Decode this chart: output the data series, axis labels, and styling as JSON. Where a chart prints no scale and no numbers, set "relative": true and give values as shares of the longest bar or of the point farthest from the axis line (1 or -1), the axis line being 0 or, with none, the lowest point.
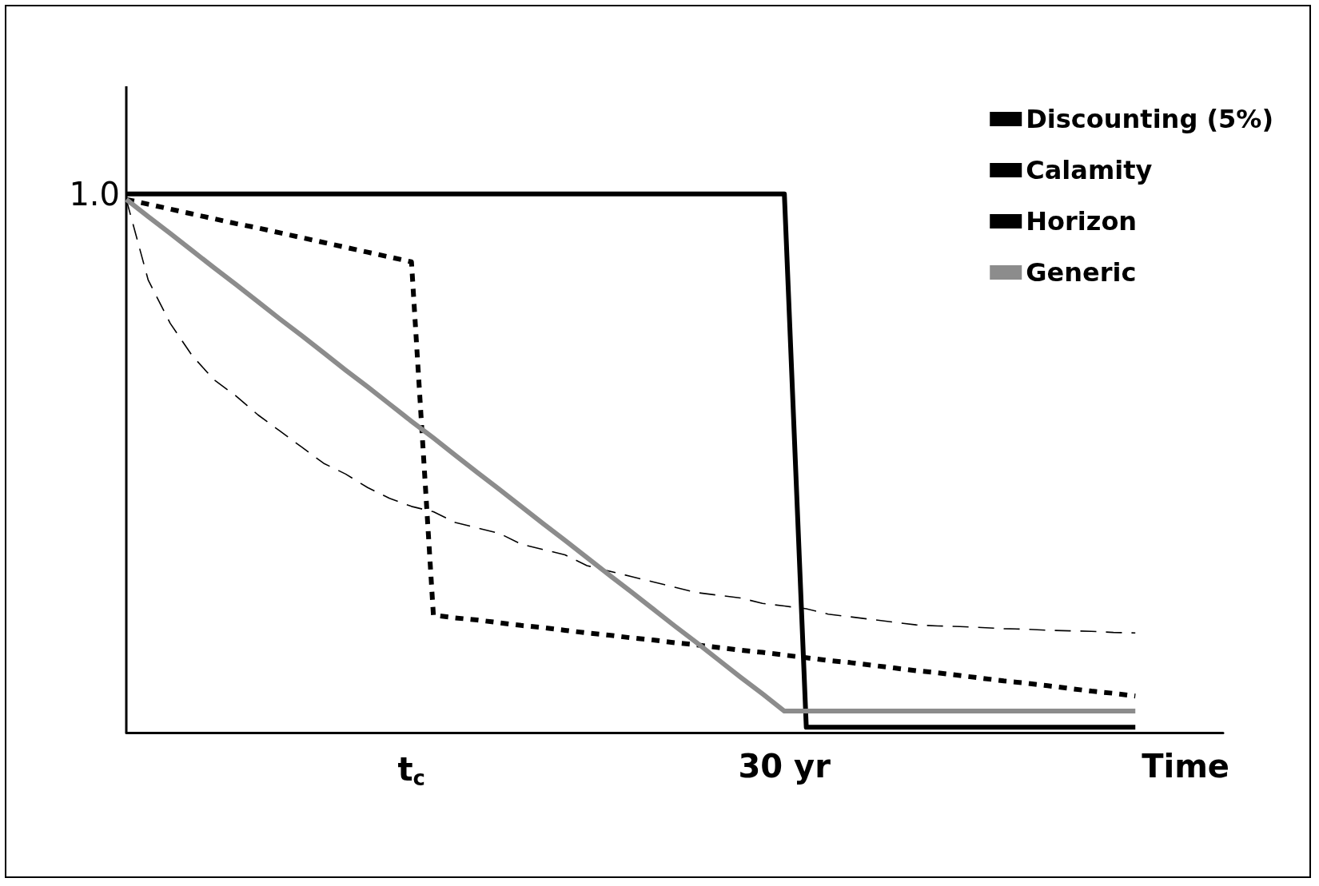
{
  "chart_data": {
    "type": "line",
    "xlabel": "Time",
    "relative": true,
    "annotations": [
      "1.0"
    ],
    "legend": "top right",
    "marker": "none",
    "grid": false,
    "categories": [
      null,
      null,
      null,
      null,
      null,
      null,
      null,
      null,
      null,
      null,
      null,
      null,
      null,
      "t$_{c}$",
      null,
      null,
      null,
      null,
      null,
      null,
      null,
      null,
      null,
      null,
      null,
      null,
      null,
      null,
      null,
      null,
      "30 yr",
      null,
      null,
      null,
      null,
      null,
      null,
      null,
      null,
      null,
      null,
      null,
      null,
      null,
      null,
      null,
      null,
      null,
      null,
      null,
      null
    ],
    "series": [
      {
        "name": "Discounting (5%)",
        "color": "#000000",
        "line_style": "dashed",
        "values": [
          0.99,
          0.84,
          0.76,
          0.7,
          0.655,
          0.625,
          0.59,
          0.56,
          0.53,
          0.5,
          0.48,
          0.455,
          0.435,
          0.42,
          0.41,
          0.39,
          0.38,
          0.37,
          0.35,
          0.34,
          0.33,
          0.31,
          0.3,
          0.29,
          0.28,
          0.27,
          0.26,
          0.255,
          0.25,
          0.24,
          0.235,
          0.23,
          0.22,
          0.215,
          0.21,
          0.205,
          0.2,
          0.198,
          0.197,
          0.195,
          0.193,
          0.192,
          0.19,
          0.189,
          0.188,
          0.186,
          0.185,
          null,
          null,
          null,
          null
        ]
      },
      {
        "name": "Calamity",
        "color": "#000000",
        "line_style": "dotted",
        "values": [
          0.99,
          0.981,
          0.972,
          0.963,
          0.954,
          0.945,
          0.937,
          0.928,
          0.919,
          0.91,
          0.901,
          0.892,
          0.883,
          0.874,
          0.218,
          0.213,
          0.209,
          0.204,
          0.199,
          0.195,
          0.19,
          0.185,
          0.181,
          0.176,
          0.172,
          0.167,
          0.163,
          0.158,
          0.153,
          0.149,
          0.144,
          0.139,
          0.134,
          0.13,
          0.125,
          0.12,
          0.115,
          0.111,
          0.106,
          0.101,
          0.096,
          0.092,
          0.087,
          0.082,
          0.077,
          0.073,
          0.068,
          null,
          null,
          null,
          null
        ]
      },
      {
        "name": "Horizon",
        "color": "#000000",
        "line_style": "solid",
        "values": [
          1,
          1,
          1,
          1,
          1,
          1,
          1,
          1,
          1,
          1,
          1,
          1,
          1,
          1,
          1,
          1,
          1,
          1,
          1,
          1,
          1,
          1,
          1,
          1,
          1,
          1,
          1,
          1,
          1,
          1,
          1,
          0.01,
          0.01,
          0.01,
          0.01,
          0.01,
          0.01,
          0.01,
          0.01,
          0.01,
          0.01,
          0.01,
          0.01,
          0.01,
          0.01,
          0.01,
          0.01,
          null,
          null,
          null,
          null
        ]
      },
      {
        "name": "Generic",
        "color": "#8c8c8c",
        "line_style": "solid",
        "values": [
          0.99,
          0.958,
          0.927,
          0.895,
          0.863,
          0.832,
          0.8,
          0.768,
          0.737,
          0.705,
          0.673,
          0.642,
          0.61,
          0.578,
          0.547,
          0.515,
          0.483,
          0.452,
          0.42,
          0.388,
          0.357,
          0.325,
          0.293,
          0.262,
          0.23,
          0.198,
          0.167,
          0.135,
          0.103,
          0.072,
          0.04,
          0.04,
          0.04,
          0.04,
          0.04,
          0.04,
          0.04,
          0.04,
          0.04,
          0.04,
          0.04,
          0.04,
          0.04,
          0.04,
          0.04,
          0.04,
          0.04,
          null,
          null,
          null,
          null
        ]
      }
    ]
  }
}
